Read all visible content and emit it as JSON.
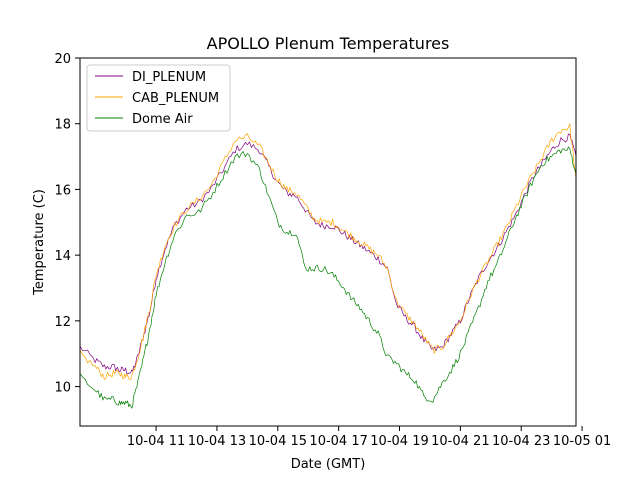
{
  "chart_data": {
    "type": "line",
    "title": "APOLLO Plenum Temperatures",
    "xlabel": "Date (GMT)",
    "ylabel": "Temperature (C)",
    "xlim": [
      8.5,
      24.8
    ],
    "ylim": [
      8.8,
      20.0
    ],
    "x_unit": "hours since 10-04 00:00 GMT",
    "x_ticks": [
      {
        "value": 11,
        "label": "10-04 11"
      },
      {
        "value": 13,
        "label": "10-04 13"
      },
      {
        "value": 15,
        "label": "10-04 15"
      },
      {
        "value": 17,
        "label": "10-04 17"
      },
      {
        "value": 19,
        "label": "10-04 19"
      },
      {
        "value": 21,
        "label": "10-04 21"
      },
      {
        "value": 23,
        "label": "10-04 23"
      },
      {
        "value": 25,
        "label": "10-05 01"
      }
    ],
    "y_ticks": [
      10,
      12,
      14,
      16,
      18,
      20
    ],
    "legend_position": "upper-left",
    "grid": false,
    "series": [
      {
        "name": "DI_PLENUM",
        "color": "#800080",
        "x": [
          8.5,
          9.0,
          9.3,
          9.6,
          9.8,
          10.0,
          10.2,
          10.4,
          10.6,
          10.8,
          11.0,
          11.3,
          11.6,
          12.0,
          12.4,
          12.8,
          13.2,
          13.6,
          14.0,
          14.4,
          14.7,
          15.0,
          15.3,
          15.6,
          15.9,
          16.2,
          16.5,
          16.8,
          17.1,
          17.4,
          17.7,
          18.0,
          18.3,
          18.6,
          18.9,
          19.2,
          19.5,
          19.8,
          20.1,
          20.4,
          20.7,
          21.0,
          21.3,
          21.6,
          21.9,
          22.2,
          22.5,
          22.8,
          23.1,
          23.4,
          23.7,
          24.0,
          24.3,
          24.6,
          24.8
        ],
        "y": [
          11.2,
          10.8,
          10.6,
          10.6,
          10.5,
          10.5,
          10.4,
          10.9,
          11.6,
          12.3,
          13.3,
          14.2,
          14.9,
          15.4,
          15.6,
          16.0,
          16.6,
          17.2,
          17.4,
          17.2,
          16.7,
          16.2,
          15.9,
          15.8,
          15.4,
          15.0,
          14.9,
          14.9,
          14.7,
          14.5,
          14.3,
          14.1,
          13.9,
          13.6,
          12.5,
          12.1,
          11.8,
          11.4,
          11.1,
          11.2,
          11.6,
          12.0,
          12.7,
          13.3,
          13.8,
          14.2,
          14.7,
          15.2,
          15.8,
          16.4,
          16.8,
          17.2,
          17.5,
          17.6,
          17.0
        ]
      },
      {
        "name": "CAB_PLENUM",
        "color": "#ffa500",
        "x": [
          8.5,
          9.0,
          9.3,
          9.6,
          9.8,
          10.0,
          10.2,
          10.4,
          10.6,
          10.8,
          11.0,
          11.3,
          11.6,
          12.0,
          12.4,
          12.8,
          13.2,
          13.6,
          14.0,
          14.4,
          14.7,
          15.0,
          15.3,
          15.6,
          15.9,
          16.2,
          16.5,
          16.8,
          17.1,
          17.4,
          17.7,
          18.0,
          18.3,
          18.6,
          18.9,
          19.2,
          19.5,
          19.8,
          20.1,
          20.4,
          20.7,
          21.0,
          21.3,
          21.6,
          21.9,
          22.2,
          22.5,
          22.8,
          23.1,
          23.4,
          23.7,
          24.0,
          24.3,
          24.6,
          24.8
        ],
        "y": [
          11.0,
          10.6,
          10.3,
          10.4,
          10.4,
          10.3,
          10.3,
          10.9,
          11.6,
          12.4,
          13.4,
          14.3,
          14.9,
          15.4,
          15.7,
          16.1,
          16.8,
          17.5,
          17.6,
          17.3,
          16.8,
          16.3,
          16.0,
          15.9,
          15.5,
          15.1,
          15.0,
          15.0,
          14.8,
          14.6,
          14.4,
          14.2,
          14.0,
          13.6,
          12.6,
          12.2,
          11.9,
          11.5,
          11.1,
          11.2,
          11.6,
          12.0,
          12.7,
          13.3,
          13.8,
          14.3,
          14.8,
          15.4,
          16.0,
          16.5,
          17.0,
          17.5,
          17.8,
          17.9,
          16.3
        ]
      },
      {
        "name": "Dome Air",
        "color": "#008000",
        "x": [
          8.5,
          9.0,
          9.3,
          9.6,
          9.8,
          10.0,
          10.2,
          10.4,
          10.6,
          10.8,
          11.0,
          11.3,
          11.6,
          12.0,
          12.4,
          12.8,
          13.2,
          13.6,
          14.0,
          14.4,
          14.7,
          15.0,
          15.3,
          15.6,
          15.9,
          16.2,
          16.5,
          16.8,
          17.1,
          17.4,
          17.7,
          18.0,
          18.3,
          18.6,
          18.9,
          19.2,
          19.5,
          19.8,
          20.1,
          20.4,
          20.7,
          21.0,
          21.3,
          21.6,
          21.9,
          22.2,
          22.5,
          22.8,
          23.1,
          23.4,
          23.7,
          24.0,
          24.3,
          24.6,
          24.8
        ],
        "y": [
          10.3,
          9.9,
          9.6,
          9.6,
          9.5,
          9.5,
          9.4,
          10.1,
          10.9,
          11.8,
          12.8,
          13.8,
          14.6,
          15.2,
          15.3,
          15.8,
          16.4,
          17.0,
          17.1,
          16.6,
          15.8,
          15.0,
          14.7,
          14.7,
          13.6,
          13.6,
          13.6,
          13.4,
          13.1,
          12.7,
          12.4,
          12.0,
          11.6,
          10.9,
          10.7,
          10.4,
          10.2,
          9.7,
          9.6,
          10.1,
          10.5,
          11.0,
          11.7,
          12.4,
          13.2,
          13.7,
          14.4,
          15.1,
          15.7,
          16.3,
          16.8,
          17.0,
          17.2,
          17.2,
          16.5
        ]
      }
    ]
  }
}
